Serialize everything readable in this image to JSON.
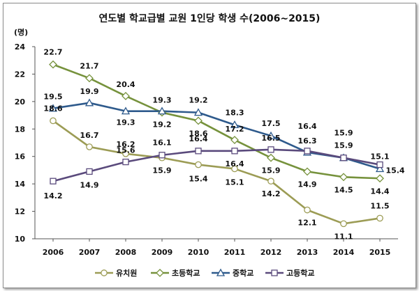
{
  "chart_data": {
    "type": "line",
    "title": "연도별 학교급별 교원 1인당 학생 수(2006~2015)",
    "unit": "(명)",
    "categories": [
      "2006",
      "2007",
      "2008",
      "2009",
      "2010",
      "2011",
      "2012",
      "2013",
      "2014",
      "2015"
    ],
    "ylim": [
      10,
      24
    ],
    "yticks": [
      10,
      12,
      14,
      16,
      18,
      20,
      22,
      24
    ],
    "grid": false,
    "legend_position": "bottom",
    "series": [
      {
        "name": "유치원",
        "marker": "circle",
        "color": "#9c9c55",
        "values": [
          18.6,
          16.7,
          16.2,
          15.9,
          15.4,
          15.1,
          14.2,
          12.1,
          11.1,
          11.5
        ]
      },
      {
        "name": "초등학교",
        "marker": "diamond",
        "color": "#76923c",
        "values": [
          22.7,
          21.7,
          20.4,
          19.2,
          18.6,
          17.2,
          15.9,
          14.9,
          14.5,
          14.4
        ]
      },
      {
        "name": "중학교",
        "marker": "triangle",
        "color": "#2e5a8c",
        "values": [
          19.5,
          19.9,
          19.3,
          19.3,
          19.2,
          18.3,
          17.5,
          16.3,
          15.9,
          15.1
        ]
      },
      {
        "name": "고등학교",
        "marker": "square",
        "color": "#5a4a7c",
        "values": [
          14.2,
          14.9,
          15.6,
          16.1,
          16.4,
          16.4,
          16.5,
          16.4,
          15.9,
          15.4
        ]
      }
    ]
  }
}
